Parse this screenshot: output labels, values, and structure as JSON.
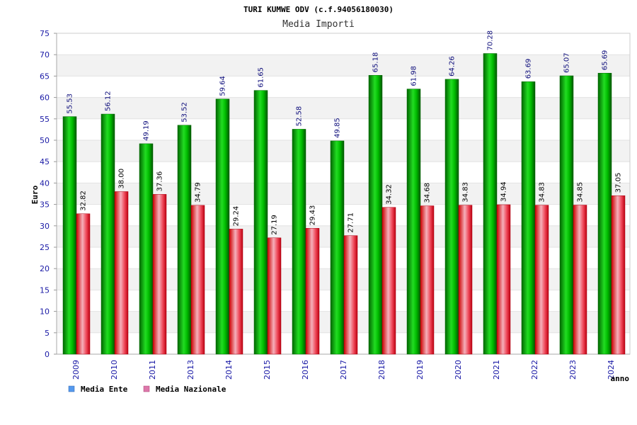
{
  "chart_data": {
    "type": "bar",
    "title": "TURI KUMWE ODV (c.f.94056180030)",
    "subtitle": "Media Importi",
    "xlabel": "anno",
    "ylabel": "Euro",
    "ylim": [
      0,
      75
    ],
    "yticks": [
      0,
      5,
      10,
      15,
      20,
      25,
      30,
      35,
      40,
      45,
      50,
      55,
      60,
      65,
      70,
      75
    ],
    "categories": [
      "2009",
      "2010",
      "2011",
      "2013",
      "2014",
      "2015",
      "2016",
      "2017",
      "2018",
      "2019",
      "2020",
      "2021",
      "2022",
      "2023",
      "2024"
    ],
    "series": [
      {
        "name": "Media Ente",
        "color": "#00aa00",
        "values": [
          55.53,
          56.12,
          49.19,
          53.52,
          59.64,
          61.65,
          52.58,
          49.85,
          65.18,
          61.98,
          64.26,
          70.28,
          63.69,
          65.07,
          65.69
        ],
        "labels": [
          "55.53",
          "56.12",
          "49.19",
          "53.52",
          "59.64",
          "61.65",
          "52.58",
          "49.85",
          "65.18",
          "61.98",
          "64.26",
          "70.28",
          "63.69",
          "65.07",
          "65.69"
        ]
      },
      {
        "name": "Media Nazionale",
        "color": "#dd2233",
        "values": [
          32.82,
          38.0,
          37.36,
          34.79,
          29.24,
          27.19,
          29.43,
          27.71,
          34.32,
          34.68,
          34.83,
          34.94,
          34.83,
          34.85,
          37.05
        ],
        "labels": [
          "32.82",
          "38.00",
          "37.36",
          "34.79",
          "29.24",
          "27.19",
          "29.43",
          "27.71",
          "34.32",
          "34.68",
          "34.83",
          "34.94",
          "34.83",
          "34.85",
          "37.05"
        ]
      }
    ],
    "legend": {
      "placement": "bottom-left",
      "items": [
        {
          "label": "Media Ente",
          "swatch": "#5599ee"
        },
        {
          "label": "Media Nazionale",
          "swatch": "#dd77aa"
        }
      ]
    },
    "grid": true
  }
}
